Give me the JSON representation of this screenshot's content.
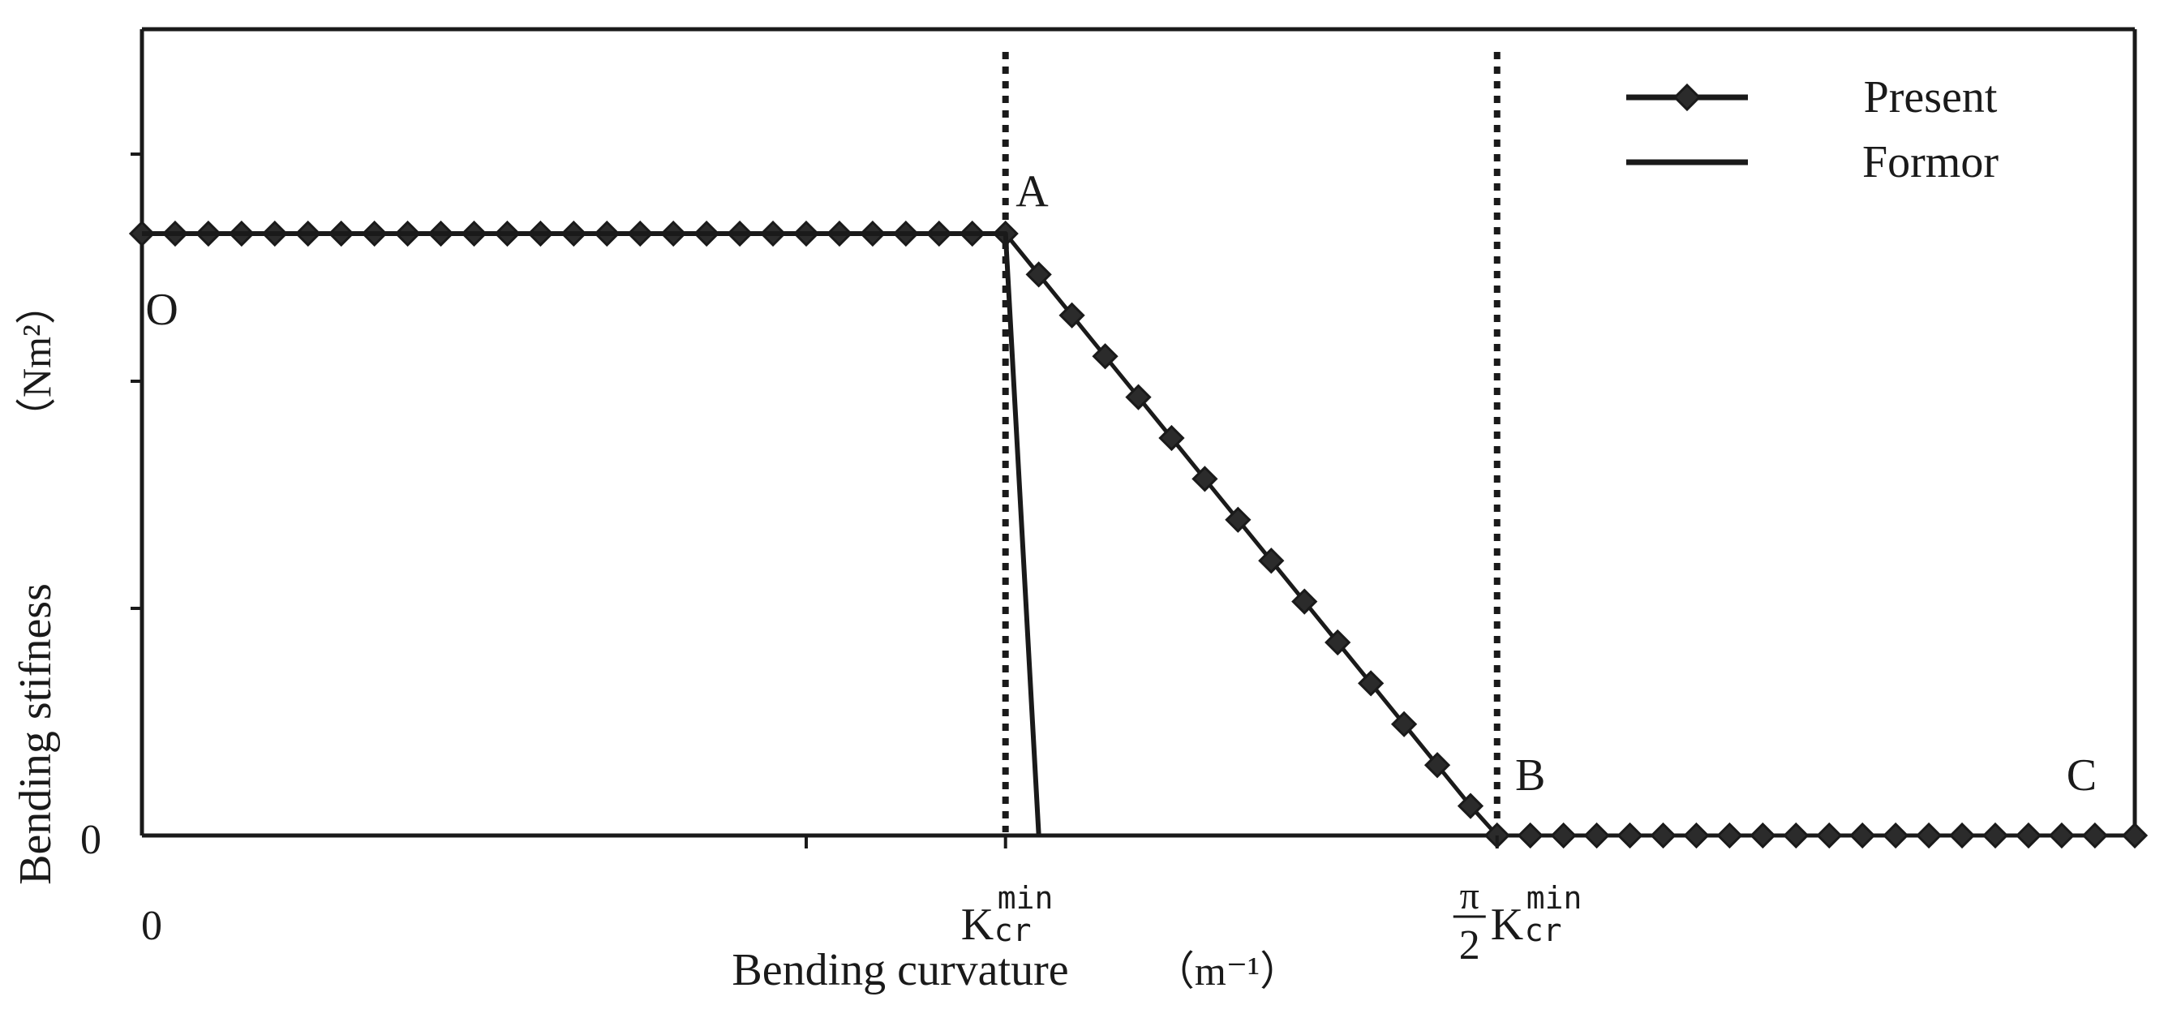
{
  "chart_data": {
    "type": "line",
    "title": "",
    "xlabel": "Bending curvature",
    "xunit": "（m⁻¹）",
    "ylabel": "Bending stifness",
    "yunit": "（Nm²）",
    "xlim": [
      0,
      3.0
    ],
    "ylim": [
      0,
      3.55
    ],
    "y_zero_label": "0",
    "x_zero_label": "0",
    "k_label": {
      "base": "K",
      "sub": "cr",
      "sup": "min"
    },
    "x_ticks": [
      {
        "x": 1.0,
        "label": "",
        "kind": "plain"
      },
      {
        "x": 1.3,
        "label": "K",
        "kind": "kcr"
      },
      {
        "x": 2.04,
        "label": "K",
        "kind": "pi2kcr",
        "pi": "π",
        "two": "2"
      }
    ],
    "y_ticks": [
      0,
      1,
      2,
      3
    ],
    "vlines": [
      1.3,
      2.04
    ],
    "point_labels": [
      {
        "text": "O",
        "x": 0.03,
        "y": 2.25
      },
      {
        "text": "A",
        "x": 1.34,
        "y": 2.77
      },
      {
        "text": "B",
        "x": 2.09,
        "y": 0.2
      },
      {
        "text": "C",
        "x": 2.92,
        "y": 0.2
      }
    ],
    "legend": {
      "position": "top-right"
    },
    "series": [
      {
        "name": "Present",
        "style": "line-diamond",
        "color": "#1a1a1a",
        "x": [
          0,
          0.05,
          0.1,
          0.15,
          0.2,
          0.25,
          0.3,
          0.35,
          0.4,
          0.45,
          0.5,
          0.55,
          0.6,
          0.65,
          0.7,
          0.75,
          0.8,
          0.85,
          0.9,
          0.95,
          1.0,
          1.05,
          1.1,
          1.15,
          1.2,
          1.25,
          1.3,
          1.35,
          1.4,
          1.45,
          1.5,
          1.55,
          1.6,
          1.65,
          1.7,
          1.75,
          1.8,
          1.85,
          1.9,
          1.95,
          2.0,
          2.04,
          2.09,
          2.14,
          2.19,
          2.24,
          2.29,
          2.34,
          2.39,
          2.44,
          2.49,
          2.54,
          2.59,
          2.64,
          2.69,
          2.74,
          2.79,
          2.84,
          2.89,
          2.94,
          3.0
        ],
        "y": [
          2.65,
          2.65,
          2.65,
          2.65,
          2.65,
          2.65,
          2.65,
          2.65,
          2.65,
          2.65,
          2.65,
          2.65,
          2.65,
          2.65,
          2.65,
          2.65,
          2.65,
          2.65,
          2.65,
          2.65,
          2.65,
          2.65,
          2.65,
          2.65,
          2.65,
          2.65,
          2.65,
          2.47,
          2.29,
          2.11,
          1.93,
          1.75,
          1.57,
          1.39,
          1.21,
          1.03,
          0.85,
          0.67,
          0.49,
          0.31,
          0.13,
          0,
          0,
          0,
          0,
          0,
          0,
          0,
          0,
          0,
          0,
          0,
          0,
          0,
          0,
          0,
          0,
          0,
          0,
          0,
          0
        ]
      },
      {
        "name": "Formor",
        "style": "line",
        "color": "#1a1a1a",
        "x": [
          0,
          1.3,
          1.35
        ],
        "y": [
          2.65,
          2.65,
          0
        ]
      }
    ]
  }
}
